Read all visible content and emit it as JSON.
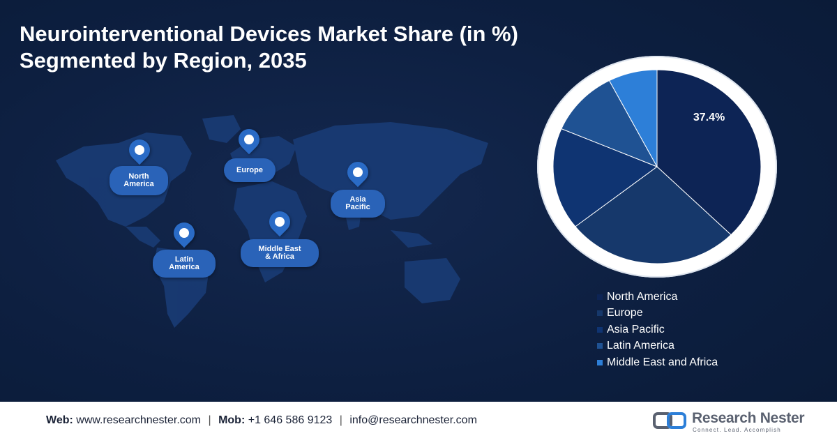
{
  "title": {
    "line1": "Neurointerventional Devices Market Share (in %)",
    "line2": "Segmented by Region, 2035"
  },
  "map_labels": {
    "north_america": [
      "North",
      "America"
    ],
    "europe": [
      "Europe"
    ],
    "asia_pacific": [
      "Asia",
      "Pacific"
    ],
    "latin_america": [
      "Latin",
      "America"
    ],
    "middle_east_africa": [
      "Middle East",
      "& Africa"
    ]
  },
  "chart_data": {
    "type": "pie",
    "title": "Neurointerventional Devices Market Share (in %) Segmented by Region, 2035",
    "categories": [
      "North America",
      "Europe",
      "Asia Pacific",
      "Latin America",
      "Middle East and Africa"
    ],
    "values": [
      37.4,
      27.0,
      17.0,
      11.0,
      7.6
    ],
    "data_labels": [
      "37.4%",
      "",
      "",
      "",
      ""
    ],
    "colors": [
      "#0d2455",
      "#16386b",
      "#0f3472",
      "#1f5293",
      "#2d7fd8"
    ],
    "legend_position": "bottom-right"
  },
  "footer": {
    "web_label": "Web:",
    "web_value": "www.researchnester.com",
    "mob_label": "Mob:",
    "mob_value": "+1 646 586 9123",
    "email": "info@researchnester.com",
    "separator": "|"
  },
  "logo": {
    "name": "Research Nester",
    "tagline": "Connect. Lead. Accomplish"
  }
}
